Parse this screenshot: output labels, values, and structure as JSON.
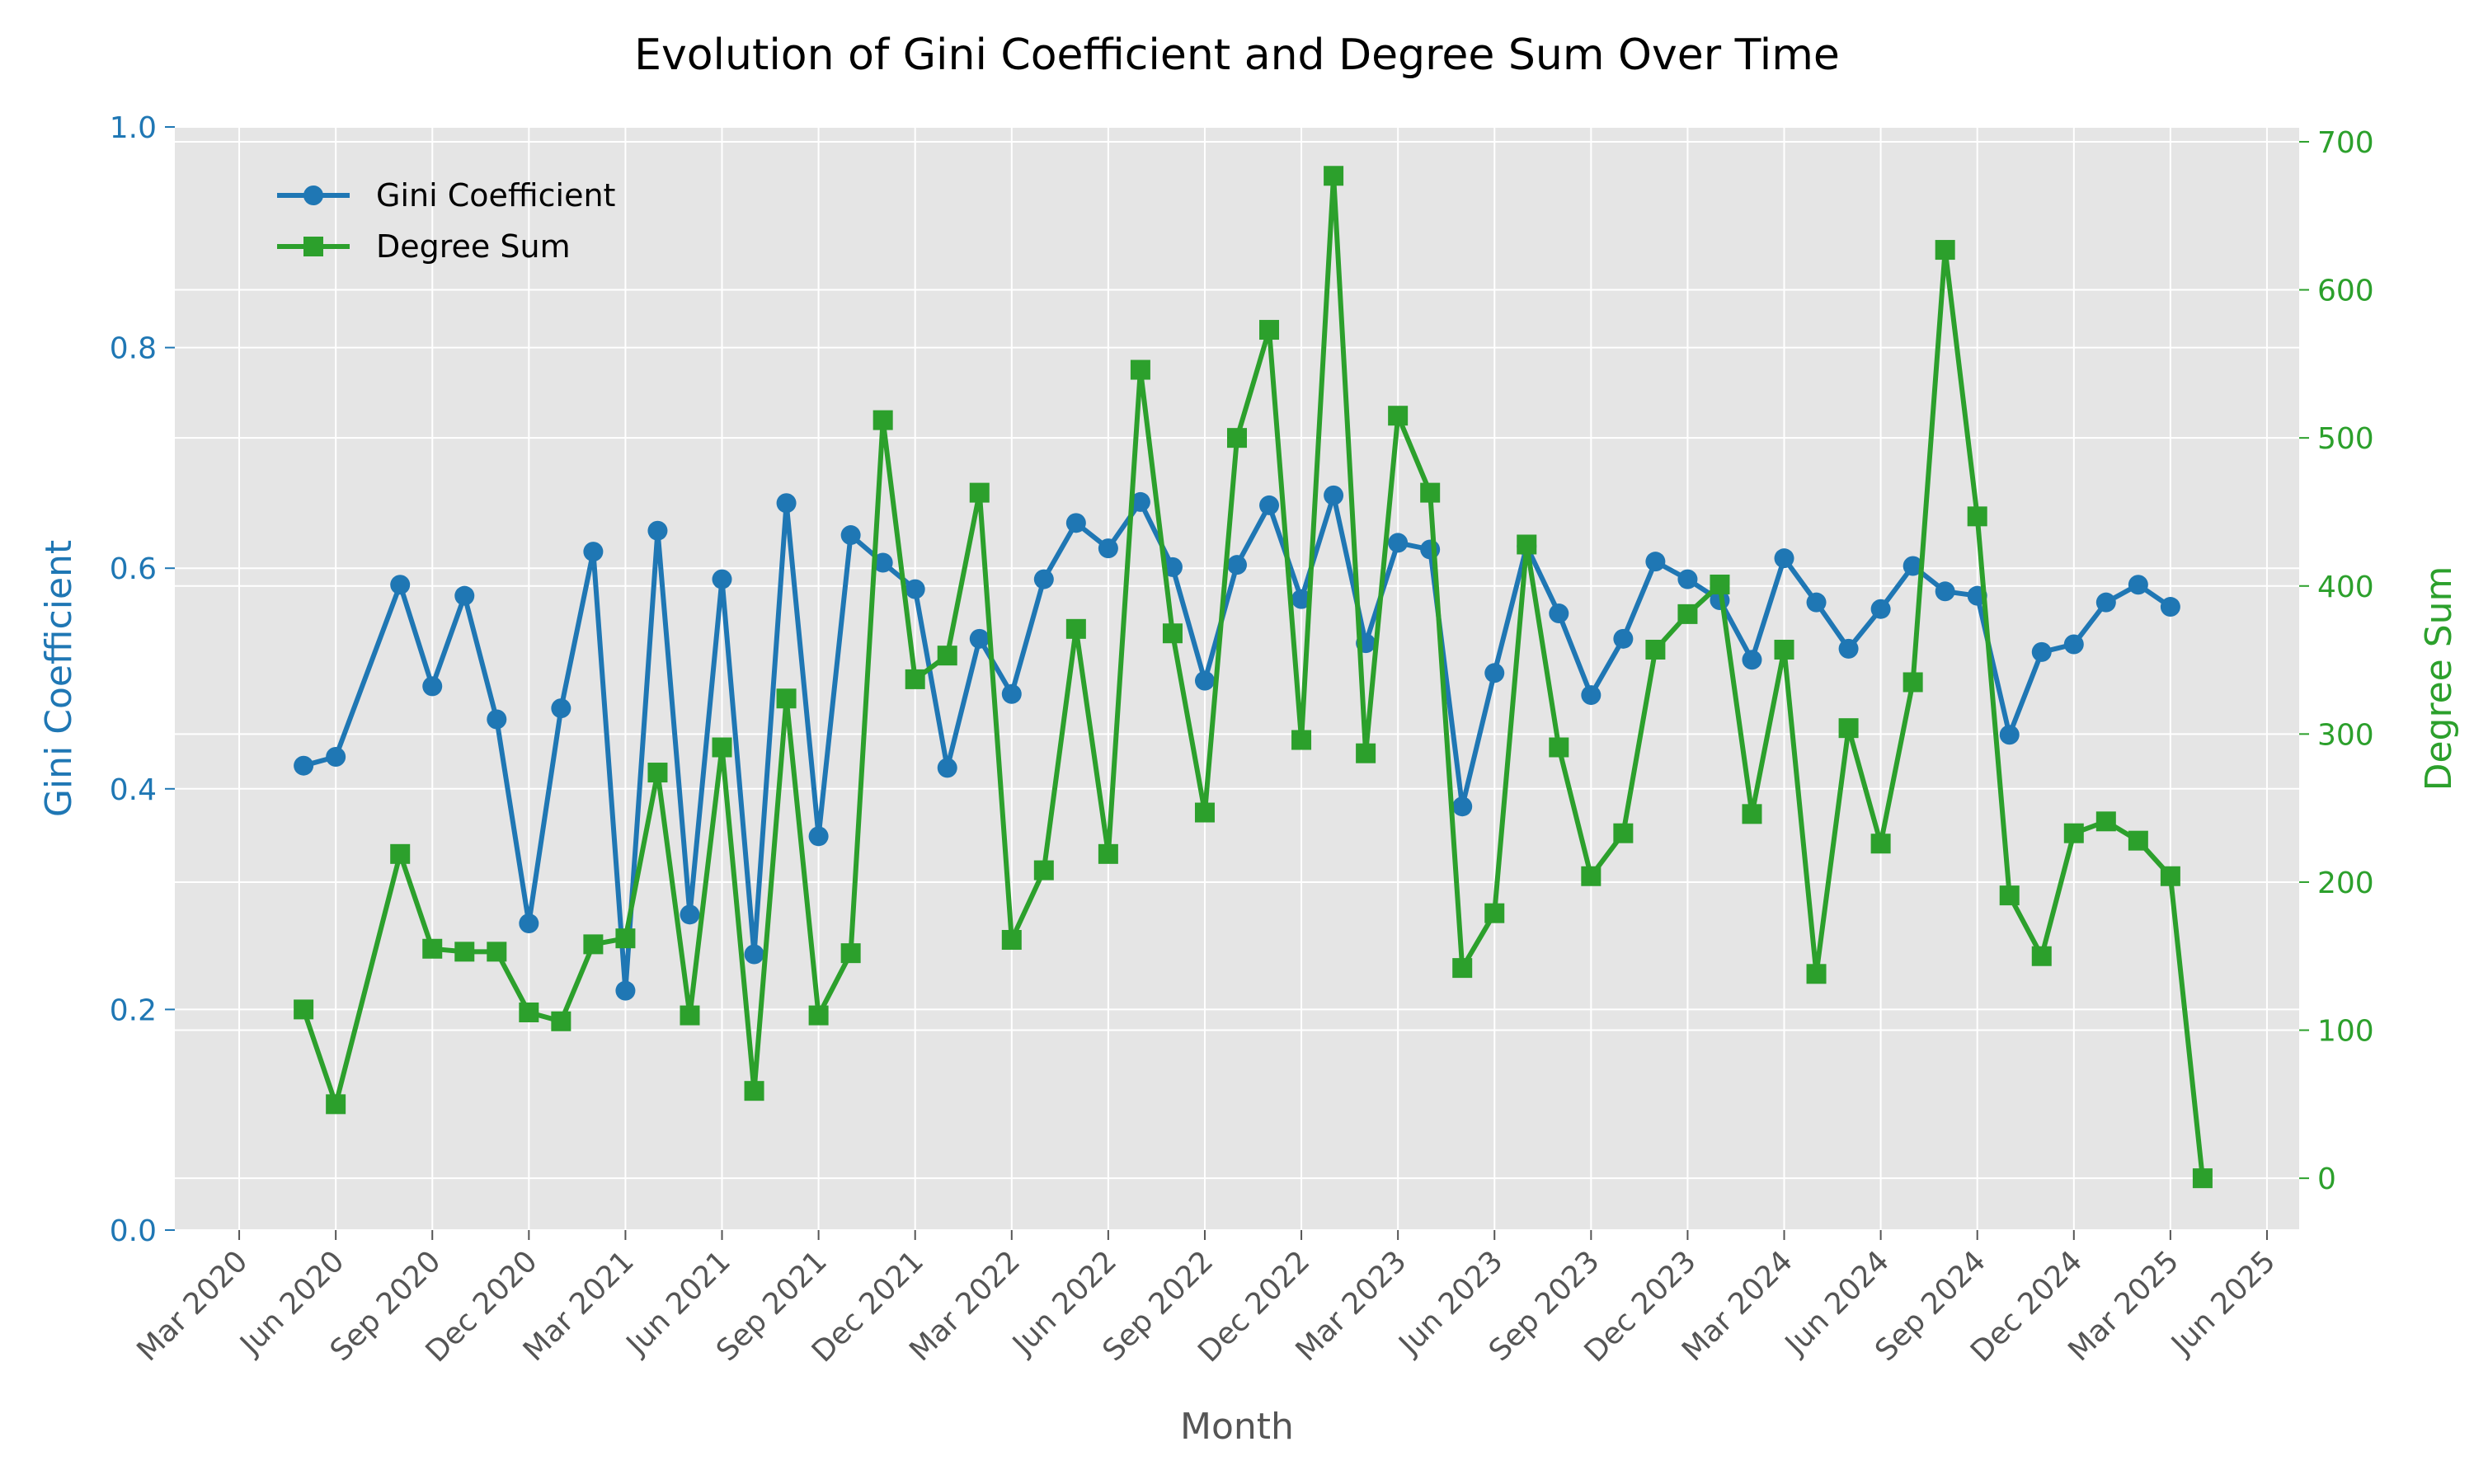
{
  "chart_data": {
    "type": "line",
    "title": "Evolution of Gini Coefficient and Degree Sum Over Time",
    "xlabel": "Month",
    "ylabel_left": "Gini Coefficient",
    "ylabel_right": "Degree Sum",
    "ylim_left": [
      0,
      1.0
    ],
    "ylim_right": [
      -35,
      710
    ],
    "x_ticks": [
      "Mar 2020",
      "Jun 2020",
      "Sep 2020",
      "Dec 2020",
      "Mar 2021",
      "Jun 2021",
      "Sep 2021",
      "Dec 2021",
      "Mar 2022",
      "Jun 2022",
      "Sep 2022",
      "Dec 2022",
      "Mar 2023",
      "Jun 2023",
      "Sep 2023",
      "Dec 2023",
      "Mar 2024",
      "Jun 2024",
      "Sep 2024",
      "Dec 2024",
      "Mar 2025",
      "Jun 2025"
    ],
    "y_ticks_left": [
      "0.0",
      "0.2",
      "0.4",
      "0.6",
      "0.8",
      "1.0"
    ],
    "y_ticks_right": [
      "0",
      "100",
      "200",
      "300",
      "400",
      "500",
      "600",
      "700"
    ],
    "grid": true,
    "legend_position": "top-left",
    "colors": {
      "gini": "#1f77b4",
      "degree": "#2ca02c",
      "background": "#e5e5e5"
    },
    "x": [
      "2020-05",
      "2020-06",
      "2020-07",
      "2020-08",
      "2020-09",
      "2020-10",
      "2020-11",
      "2020-12",
      "2021-01",
      "2021-02",
      "2021-03",
      "2021-04",
      "2021-05",
      "2021-06",
      "2021-07",
      "2021-08",
      "2021-09",
      "2021-10",
      "2021-11",
      "2021-12",
      "2022-01",
      "2022-02",
      "2022-03",
      "2022-04",
      "2022-05",
      "2022-06",
      "2022-07",
      "2022-08",
      "2022-09",
      "2022-10",
      "2022-11",
      "2022-12",
      "2023-01",
      "2023-02",
      "2023-03",
      "2023-04",
      "2023-05",
      "2023-06",
      "2023-07",
      "2023-08",
      "2023-09",
      "2023-10",
      "2023-11",
      "2023-12",
      "2024-01",
      "2024-02",
      "2024-03",
      "2024-04",
      "2024-05",
      "2024-06",
      "2024-07",
      "2024-08",
      "2024-09",
      "2024-10",
      "2024-11",
      "2024-12",
      "2025-01",
      "2025-02",
      "2025-03",
      "2025-04"
    ],
    "series": [
      {
        "name": "Gini Coefficient",
        "axis": "left",
        "marker": "circle",
        "values": [
          0.421,
          0.429,
          null,
          0.585,
          0.493,
          0.575,
          0.463,
          0.278,
          0.473,
          0.615,
          0.217,
          0.634,
          0.286,
          0.59,
          0.25,
          0.659,
          0.357,
          0.63,
          0.605,
          0.581,
          0.419,
          0.536,
          0.486,
          0.59,
          0.641,
          0.618,
          0.66,
          0.601,
          0.498,
          0.603,
          0.657,
          0.572,
          0.666,
          0.532,
          0.623,
          0.617,
          0.384,
          0.505,
          0.62,
          0.559,
          0.485,
          0.536,
          0.606,
          0.59,
          0.571,
          0.517,
          0.609,
          0.569,
          0.527,
          0.563,
          0.602,
          0.579,
          0.575,
          0.449,
          0.524,
          0.531,
          0.569,
          0.585,
          0.565,
          null
        ]
      },
      {
        "name": "Degree Sum",
        "axis": "right",
        "marker": "square",
        "values": [
          114,
          50,
          null,
          219,
          155,
          153,
          153,
          112,
          106,
          158,
          162,
          274,
          110,
          291,
          59,
          324,
          110,
          152,
          512,
          337,
          353,
          463,
          161,
          208,
          371,
          219,
          546,
          368,
          247,
          500,
          573,
          296,
          677,
          287,
          515,
          463,
          142,
          179,
          428,
          291,
          204,
          233,
          357,
          381,
          401,
          246,
          357,
          138,
          304,
          226,
          335,
          627,
          447,
          191,
          150,
          233,
          241,
          228,
          204,
          0
        ]
      }
    ]
  }
}
